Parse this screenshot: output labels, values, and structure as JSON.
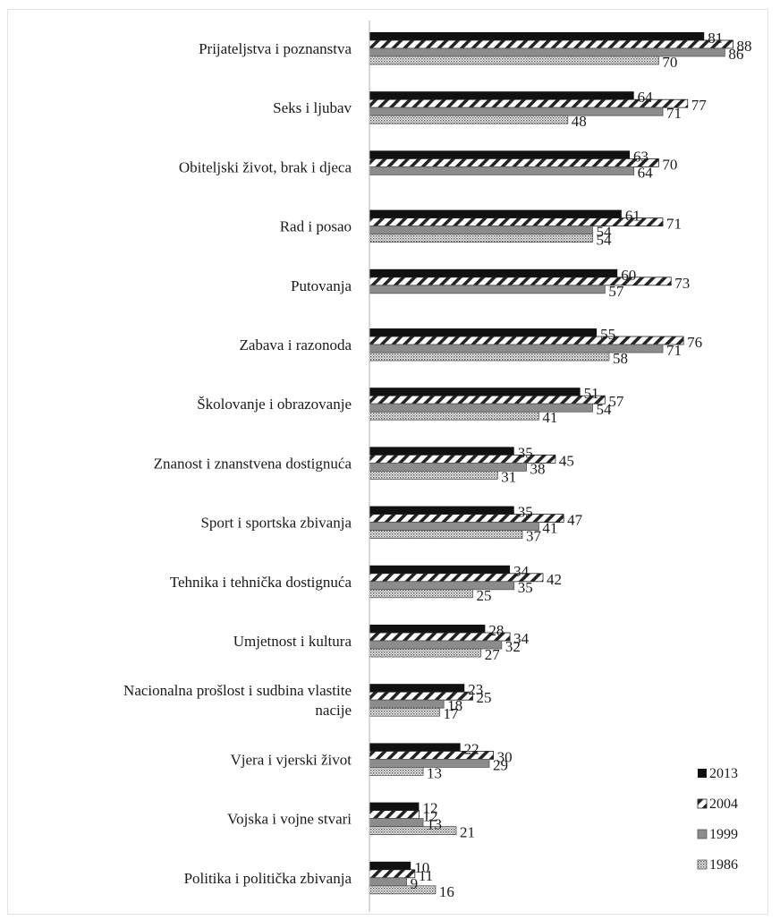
{
  "chart_data": {
    "type": "bar",
    "orientation": "horizontal",
    "categories": [
      "Prijateljstva i poznanstva",
      "Seks i ljubav",
      "Obiteljski život, brak i djeca",
      "Rad i posao",
      "Putovanja",
      "Zabava i razonoda",
      "Školovanje i obrazovanje",
      "Znanost i znanstvena dostignuća",
      "Sport i sportska zbivanja",
      "Tehnika i tehnička dostignuća",
      "Umjetnost i kultura",
      "Nacionalna prošlost i sudbina vlastite nacije",
      "Vjera i vjerski život",
      "Vojska i vojne stvari",
      "Politika i politička zbivanja"
    ],
    "series": [
      {
        "name": "2013",
        "pattern": "solid",
        "values": [
          81,
          64,
          63,
          61,
          60,
          55,
          51,
          35,
          35,
          34,
          28,
          23,
          22,
          12,
          10
        ]
      },
      {
        "name": "2004",
        "pattern": "hatched",
        "values": [
          88,
          77,
          70,
          71,
          73,
          76,
          57,
          45,
          47,
          42,
          34,
          25,
          30,
          12,
          11
        ]
      },
      {
        "name": "1999",
        "pattern": "gray",
        "values": [
          86,
          71,
          64,
          54,
          57,
          71,
          54,
          38,
          41,
          35,
          32,
          18,
          29,
          13,
          9
        ]
      },
      {
        "name": "1986",
        "pattern": "dotted",
        "values": [
          70,
          48,
          null,
          54,
          null,
          58,
          41,
          31,
          37,
          25,
          27,
          17,
          13,
          21,
          16
        ]
      }
    ],
    "xlim": [
      0,
      100
    ],
    "grid": false,
    "legend_position": "bottom-right",
    "colors": {
      "solid": "#111111",
      "gray": "#8c8c8c",
      "hatch": "#222222",
      "dots": "#555555"
    }
  }
}
